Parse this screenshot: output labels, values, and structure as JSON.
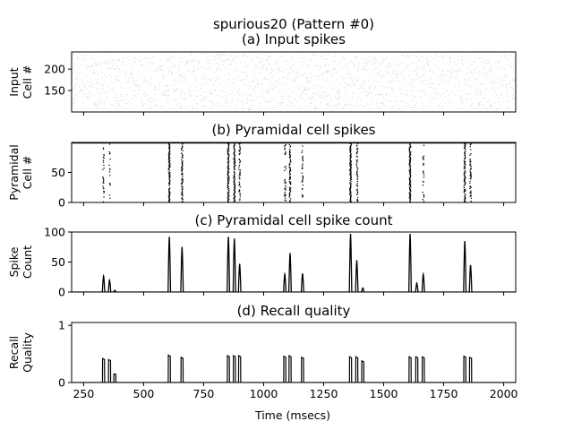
{
  "figure": {
    "suptitle": "spurious20 (Pattern #0)",
    "xlabel": "Time (msecs)",
    "x_ticks": [
      "250",
      "500",
      "750",
      "1000",
      "1250",
      "1500",
      "1750",
      "2000"
    ]
  },
  "chart_data": [
    {
      "id": "input",
      "type": "scatter",
      "title": "(a) Input spikes",
      "ylabel_line1": "Input",
      "ylabel_line2": "Cell #",
      "xlim": [
        200,
        2050
      ],
      "ylim": [
        100,
        240
      ],
      "y_ticks": [
        150,
        200
      ],
      "y_tick_labels": [
        "150",
        "200"
      ],
      "description": "dense faint background spike raster for cells ~100-240 across whole interval",
      "marker_color": "#bfbfbf"
    },
    {
      "id": "pyramidal",
      "type": "scatter",
      "title": "(b) Pyramidal cell spikes",
      "ylabel_line1": "Pyramidal",
      "ylabel_line2": "Cell #",
      "xlim": [
        200,
        2050
      ],
      "ylim": [
        0,
        100
      ],
      "y_ticks": [
        0,
        50
      ],
      "y_tick_labels": [
        "0",
        "50"
      ],
      "baseline_row": 99,
      "bursts": [
        {
          "t": 333,
          "density": 0.25
        },
        {
          "t": 358,
          "density": 0.2
        },
        {
          "t": 607,
          "density": 0.9
        },
        {
          "t": 660,
          "density": 0.75
        },
        {
          "t": 853,
          "density": 0.9
        },
        {
          "t": 878,
          "density": 0.9
        },
        {
          "t": 900,
          "density": 0.5
        },
        {
          "t": 1090,
          "density": 0.3
        },
        {
          "t": 1110,
          "density": 0.65
        },
        {
          "t": 1162,
          "density": 0.3
        },
        {
          "t": 1362,
          "density": 0.95
        },
        {
          "t": 1390,
          "density": 0.55
        },
        {
          "t": 1610,
          "density": 0.95
        },
        {
          "t": 1665,
          "density": 0.3
        },
        {
          "t": 1838,
          "density": 0.85
        },
        {
          "t": 1862,
          "density": 0.45
        }
      ],
      "marker_color": "#000000"
    },
    {
      "id": "spike_count",
      "type": "line",
      "title": "(c) Pyramidal cell spike count",
      "ylabel_line1": "Spike",
      "ylabel_line2": "Count",
      "xlim": [
        200,
        2050
      ],
      "ylim": [
        0,
        100
      ],
      "y_ticks": [
        0,
        50,
        100
      ],
      "y_tick_labels": [
        "0",
        "50",
        "100"
      ],
      "peaks": [
        {
          "t": 333,
          "v": 27
        },
        {
          "t": 358,
          "v": 20
        },
        {
          "t": 380,
          "v": 3
        },
        {
          "t": 607,
          "v": 92
        },
        {
          "t": 660,
          "v": 75
        },
        {
          "t": 853,
          "v": 92
        },
        {
          "t": 878,
          "v": 89
        },
        {
          "t": 900,
          "v": 47
        },
        {
          "t": 1088,
          "v": 30
        },
        {
          "t": 1110,
          "v": 65
        },
        {
          "t": 1162,
          "v": 31
        },
        {
          "t": 1362,
          "v": 97
        },
        {
          "t": 1388,
          "v": 53
        },
        {
          "t": 1413,
          "v": 7
        },
        {
          "t": 1610,
          "v": 97
        },
        {
          "t": 1638,
          "v": 15
        },
        {
          "t": 1665,
          "v": 30
        },
        {
          "t": 1838,
          "v": 85
        },
        {
          "t": 1862,
          "v": 45
        }
      ],
      "line_color": "#000000"
    },
    {
      "id": "recall",
      "type": "line",
      "title": "(d) Recall quality",
      "ylabel_line1": "Recall",
      "ylabel_line2": "Quality",
      "xlim": [
        200,
        2050
      ],
      "ylim": [
        0,
        1.05
      ],
      "y_ticks": [
        0,
        1
      ],
      "y_tick_labels": [
        "0",
        "1"
      ],
      "pulses": [
        {
          "t": 333,
          "v": 0.42
        },
        {
          "t": 358,
          "v": 0.4
        },
        {
          "t": 380,
          "v": 0.15
        },
        {
          "t": 607,
          "v": 0.48
        },
        {
          "t": 660,
          "v": 0.44
        },
        {
          "t": 853,
          "v": 0.47
        },
        {
          "t": 878,
          "v": 0.47
        },
        {
          "t": 900,
          "v": 0.47
        },
        {
          "t": 1088,
          "v": 0.46
        },
        {
          "t": 1110,
          "v": 0.47
        },
        {
          "t": 1162,
          "v": 0.44
        },
        {
          "t": 1362,
          "v": 0.45
        },
        {
          "t": 1388,
          "v": 0.45
        },
        {
          "t": 1413,
          "v": 0.38
        },
        {
          "t": 1610,
          "v": 0.45
        },
        {
          "t": 1638,
          "v": 0.45
        },
        {
          "t": 1665,
          "v": 0.45
        },
        {
          "t": 1838,
          "v": 0.46
        },
        {
          "t": 1862,
          "v": 0.44
        }
      ],
      "line_color": "#000000"
    }
  ]
}
